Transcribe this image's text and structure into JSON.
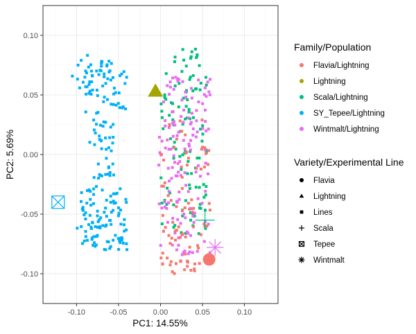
{
  "chart_data": {
    "type": "scatter",
    "xlabel": "PC1: 14.55%",
    "ylabel": "PC2: 5.69%",
    "xlim": [
      -0.14,
      0.14
    ],
    "ylim": [
      -0.125,
      0.125
    ],
    "x_ticks": [
      -0.1,
      -0.05,
      0.0,
      0.05,
      0.1
    ],
    "x_tick_labels": [
      "-0.10",
      "-0.05",
      "0.00",
      "0.05",
      "0.10"
    ],
    "y_ticks": [
      -0.1,
      -0.05,
      0.0,
      0.05,
      0.1
    ],
    "y_tick_labels": [
      "-0.10",
      "-0.05",
      "0.00",
      "0.05",
      "0.10"
    ],
    "grid": true,
    "legend_placement": "right",
    "legend_color": {
      "title": "Family/Population",
      "items": [
        {
          "name": "Flavia/Lightning",
          "color": "#F8766D"
        },
        {
          "name": "Lightning",
          "color": "#A3A500"
        },
        {
          "name": "Scala/Lightning",
          "color": "#00BF7D"
        },
        {
          "name": "SY_Tepee/Lightning",
          "color": "#00B0F6"
        },
        {
          "name": "Wintmalt/Lightning",
          "color": "#E76BF3"
        }
      ]
    },
    "legend_shape": {
      "title": "Variety/Experimental Line",
      "items": [
        {
          "name": "Flavia",
          "shape": "circle"
        },
        {
          "name": "Lightning",
          "shape": "triangle"
        },
        {
          "name": "Lines",
          "shape": "square"
        },
        {
          "name": "Scala",
          "shape": "plus"
        },
        {
          "name": "Tepee",
          "shape": "boxed-x"
        },
        {
          "name": "Wintmalt",
          "shape": "asterisk"
        }
      ]
    },
    "parents": [
      {
        "name": "Flavia",
        "x": 0.058,
        "y": -0.088,
        "shape": "circle",
        "color": "#F8766D"
      },
      {
        "name": "Lightning",
        "x": -0.006,
        "y": 0.053,
        "shape": "triangle",
        "color": "#A3A500"
      },
      {
        "name": "Scala",
        "x": 0.053,
        "y": -0.055,
        "shape": "plus",
        "color": "#00BF7D"
      },
      {
        "name": "Tepee",
        "x": -0.122,
        "y": -0.04,
        "shape": "boxed-x",
        "color": "#00B0F6"
      },
      {
        "name": "Wintmalt",
        "x": 0.065,
        "y": -0.078,
        "shape": "asterisk",
        "color": "#E76BF3"
      }
    ],
    "line_clusters": [
      {
        "series": "SY_Tepee/Lightning",
        "color": "#00B0F6",
        "n": 210,
        "regions": [
          [
            -0.09,
            -0.04,
            0.035,
            0.08,
            50
          ],
          [
            -0.1,
            -0.04,
            -0.08,
            -0.025,
            100
          ],
          [
            -0.085,
            -0.055,
            -0.02,
            0.035,
            40
          ],
          [
            -0.105,
            -0.08,
            0.05,
            0.085,
            20
          ]
        ]
      },
      {
        "series": "Scala/Lightning",
        "color": "#00BF7D",
        "n": 110,
        "regions": [
          [
            0.0,
            0.055,
            -0.07,
            0.09,
            110
          ]
        ]
      },
      {
        "series": "Wintmalt/Lightning",
        "color": "#E76BF3",
        "n": 140,
        "regions": [
          [
            -0.002,
            0.06,
            -0.085,
            0.065,
            140
          ]
        ]
      },
      {
        "series": "Flavia/Lightning",
        "color": "#F8766D",
        "n": 85,
        "regions": [
          [
            0.0,
            0.06,
            -0.1,
            0.03,
            85
          ]
        ]
      }
    ]
  }
}
